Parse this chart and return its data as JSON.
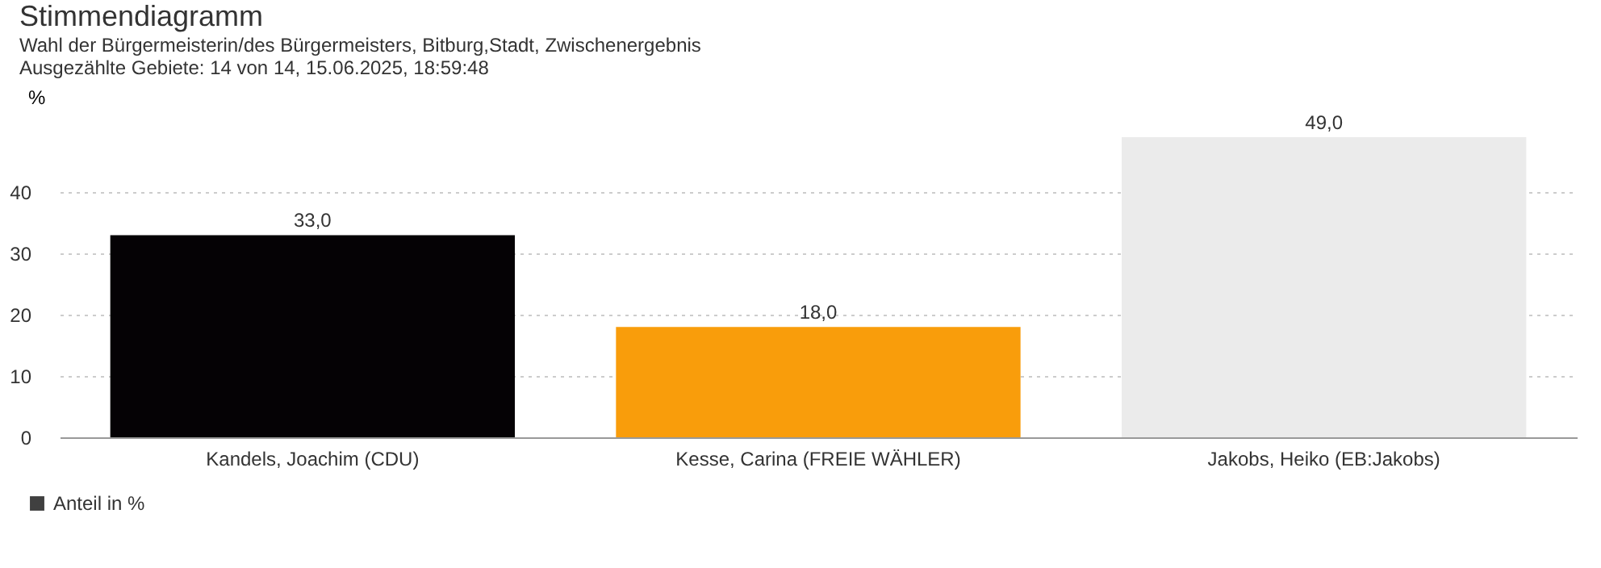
{
  "chart_data": {
    "type": "bar",
    "title": "Stimmendiagramm",
    "subtitle": "Wahl der Bürgermeisterin/des Bürgermeisters, Bitburg,Stadt, Zwischenergebnis\nAusgezählte Gebiete: 14 von 14, 15.06.2025, 18:59:48",
    "ylabel": "%",
    "categories": [
      "Kandels, Joachim (CDU)",
      "Kesse, Carina (FREIE WÄHLER)",
      "Jakobs, Heiko (EB:Jakobs)"
    ],
    "series": [
      {
        "name": "Anteil in %",
        "color": "#404040",
        "values": [
          33.0,
          18.0,
          49.0
        ],
        "colors": [
          "#050205",
          "#f99d0b",
          "#ebebeb"
        ],
        "value_labels": [
          "33,0",
          "18,0",
          "49,0"
        ]
      }
    ],
    "ylim": [
      0,
      49
    ],
    "yticks": [
      0,
      10,
      20,
      30,
      40
    ],
    "grid": "y",
    "legend": "bottom left"
  }
}
